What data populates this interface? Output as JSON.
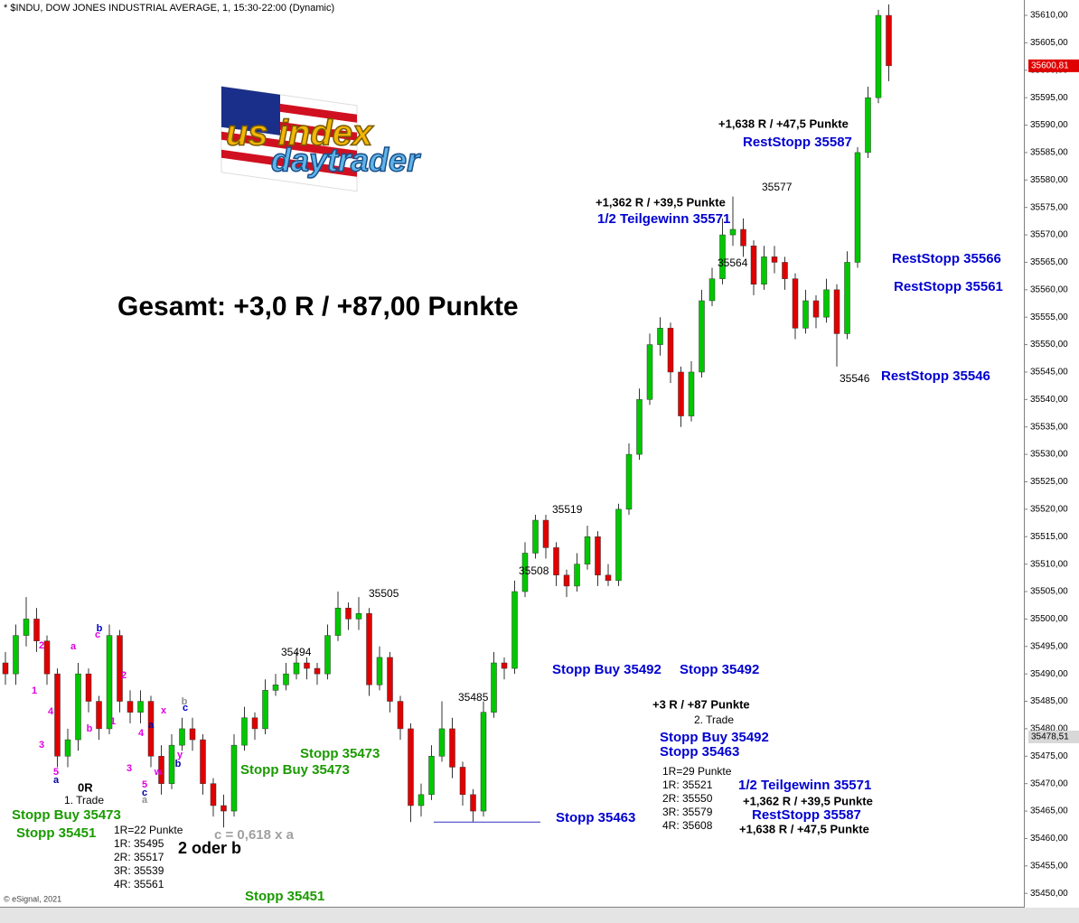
{
  "chart_data": {
    "type": "candlestick",
    "title": "* $INDU, DOW JONES INDUSTRIAL AVERAGE, 1, 15:30-22:00 (Dynamic)",
    "footer": "© eSignal, 2021",
    "logo": {
      "top": "us index",
      "bottom": "daytrader"
    },
    "up_color": "#00c800",
    "down_color": "#e00000",
    "ylim": [
      35447.4,
      35612.8
    ],
    "yticks": [
      {
        "value": 35450,
        "label": "35450,00"
      },
      {
        "value": 35455,
        "label": "35455,00"
      },
      {
        "value": 35460,
        "label": "35460,00"
      },
      {
        "value": 35465,
        "label": "35465,00"
      },
      {
        "value": 35470,
        "label": "35470,00"
      },
      {
        "value": 35475,
        "label": "35475,00"
      },
      {
        "value": 35480,
        "label": "35480,00"
      },
      {
        "value": 35485,
        "label": "35485,00"
      },
      {
        "value": 35490,
        "label": "35490,00"
      },
      {
        "value": 35495,
        "label": "35495,00"
      },
      {
        "value": 35500,
        "label": "35500,00"
      },
      {
        "value": 35505,
        "label": "35505,00"
      },
      {
        "value": 35510,
        "label": "35510,00"
      },
      {
        "value": 35515,
        "label": "35515,00"
      },
      {
        "value": 35520,
        "label": "35520,00"
      },
      {
        "value": 35525,
        "label": "35525,00"
      },
      {
        "value": 35530,
        "label": "35530,00"
      },
      {
        "value": 35535,
        "label": "35535,00"
      },
      {
        "value": 35540,
        "label": "35540,00"
      },
      {
        "value": 35545,
        "label": "35545,00"
      },
      {
        "value": 35550,
        "label": "35550,00"
      },
      {
        "value": 35555,
        "label": "35555,00"
      },
      {
        "value": 35560,
        "label": "35560,00"
      },
      {
        "value": 35565,
        "label": "35565,00"
      },
      {
        "value": 35570,
        "label": "35570,00"
      },
      {
        "value": 35575,
        "label": "35575,00"
      },
      {
        "value": 35580,
        "label": "35580,00"
      },
      {
        "value": 35585,
        "label": "35585,00"
      },
      {
        "value": 35590,
        "label": "35590,00"
      },
      {
        "value": 35595,
        "label": "35595,00"
      },
      {
        "value": 35600,
        "label": "35600,00"
      },
      {
        "value": 35605,
        "label": "35605,00"
      },
      {
        "value": 35610,
        "label": "35610,00"
      }
    ],
    "price_markers": [
      {
        "value": 35600.81,
        "label": "35600,81",
        "color": "#e00000"
      },
      {
        "value": 35478.51,
        "label": "35478,51",
        "color": "#d8d8d8"
      }
    ],
    "stop_line": 35463,
    "open": [
      35492,
      35490,
      35497,
      35500,
      35496,
      35490,
      35475,
      35478,
      35490,
      35485,
      35480,
      35497,
      35485,
      35483,
      35485,
      35475,
      35470,
      35477,
      35480,
      35478,
      35470,
      35466,
      35465,
      35477,
      35482,
      35480,
      35487,
      35488,
      35490,
      35492,
      35491,
      35490,
      35497,
      35502,
      35500,
      35501,
      35488,
      35493,
      35485,
      35480,
      35466,
      35468,
      35475,
      35480,
      35473,
      35468,
      35465,
      35483,
      35492,
      35491,
      35505,
      35512,
      35518,
      35513,
      35508,
      35506,
      35510,
      35515,
      35508,
      35507,
      35520,
      35530,
      35540,
      35550,
      35553,
      35545,
      35537,
      35545,
      35558,
      35562,
      35570,
      35571,
      35568,
      35561,
      35566,
      35565,
      35562,
      35553,
      35558,
      35555,
      35560,
      35552,
      35565,
      35585,
      35595,
      35610
    ],
    "high": [
      35494,
      35499,
      35504,
      35502,
      35497,
      35491,
      35480,
      35492,
      35491,
      35486,
      35499,
      35498,
      35487,
      35487,
      35486,
      35477,
      35479,
      35482,
      35482,
      35479,
      35471,
      35468,
      35479,
      35484,
      35483,
      35489,
      35490,
      35492,
      35494,
      35493,
      35492,
      35499,
      35505,
      35503,
      35504,
      35502,
      35495,
      35494,
      35486,
      35481,
      35470,
      35477,
      35485,
      35482,
      35474,
      35469,
      35485,
      35494,
      35493,
      35507,
      35514,
      35519,
      35519,
      35514,
      35509,
      35512,
      35517,
      35516,
      35510,
      35521,
      35532,
      35542,
      35552,
      35555,
      35554,
      35546,
      35547,
      35560,
      35564,
      35573,
      35577,
      35573,
      35569,
      35568,
      35568,
      35566,
      35563,
      35560,
      35559,
      35562,
      35561,
      35567,
      35586,
      35597,
      35611,
      35612
    ],
    "low": [
      35488,
      35488,
      35495,
      35494,
      35488,
      35473,
      35473,
      35476,
      35483,
      35478,
      35479,
      35483,
      35481,
      35481,
      35473,
      35468,
      35469,
      35476,
      35476,
      35468,
      35464,
      35462,
      35464,
      35476,
      35478,
      35479,
      35486,
      35487,
      35489,
      35489,
      35488,
      35489,
      35496,
      35498,
      35498,
      35486,
      35487,
      35483,
      35478,
      35463,
      35464,
      35467,
      35474,
      35471,
      35466,
      35463,
      35464,
      35482,
      35489,
      35490,
      35504,
      35511,
      35511,
      35506,
      35504,
      35505,
      35509,
      35506,
      35506,
      35506,
      35519,
      35529,
      35539,
      35548,
      35543,
      35535,
      35536,
      35544,
      35557,
      35561,
      35568,
      35566,
      35559,
      35560,
      35563,
      35560,
      35551,
      35552,
      35553,
      35554,
      35546,
      35551,
      35564,
      35584,
      35594,
      35598
    ],
    "close": [
      35490,
      35497,
      35500,
      35496,
      35490,
      35475,
      35478,
      35490,
      35485,
      35480,
      35497,
      35485,
      35483,
      35485,
      35475,
      35470,
      35477,
      35480,
      35478,
      35470,
      35466,
      35465,
      35477,
      35482,
      35480,
      35487,
      35488,
      35490,
      35492,
      35491,
      35490,
      35497,
      35502,
      35500,
      35501,
      35488,
      35493,
      35485,
      35480,
      35466,
      35468,
      35475,
      35480,
      35473,
      35468,
      35465,
      35483,
      35492,
      35491,
      35505,
      35512,
      35518,
      35513,
      35508,
      35506,
      35510,
      35515,
      35508,
      35507,
      35520,
      35530,
      35540,
      35550,
      35553,
      35545,
      35537,
      35545,
      35558,
      35562,
      35570,
      35571,
      35568,
      35561,
      35566,
      35565,
      35562,
      35553,
      35558,
      35555,
      35560,
      35552,
      35565,
      35585,
      35595,
      35610,
      35600.81
    ],
    "annotations": [
      {
        "text": "Gesamt: +3,0 R / +87,00 Punkte",
        "color": "#000000"
      },
      {
        "text": "+1,638 R / +47,5 Punkte",
        "color": "#000000"
      },
      {
        "text": "RestStopp 35587",
        "color": "#0000d0"
      },
      {
        "text": "35577",
        "color": "#000000"
      },
      {
        "text": "+1,362 R / +39,5 Punkte",
        "color": "#000000"
      },
      {
        "text": "1/2 Teilgewinn 35571",
        "color": "#0000d0"
      },
      {
        "text": "35564",
        "color": "#000000"
      },
      {
        "text": "RestStopp 35566",
        "color": "#0000d0"
      },
      {
        "text": "RestStopp 35561",
        "color": "#0000d0"
      },
      {
        "text": "35546",
        "color": "#000000"
      },
      {
        "text": "RestStopp 35546",
        "color": "#0000d0"
      },
      {
        "text": "35519",
        "color": "#000000"
      },
      {
        "text": "35508",
        "color": "#000000"
      },
      {
        "text": "35505",
        "color": "#000000"
      },
      {
        "text": "35494",
        "color": "#000000"
      },
      {
        "text": "35485",
        "color": "#000000"
      },
      {
        "text": "Stopp Buy 35492",
        "color": "#0000d0"
      },
      {
        "text": "Stopp 35492",
        "color": "#0000d0"
      },
      {
        "text": "+3 R / +87 Punkte",
        "color": "#000000"
      },
      {
        "text": "2. Trade",
        "color": "#000000"
      },
      {
        "text": "Stopp Buy 35492",
        "color": "#0000d0"
      },
      {
        "text": "Stopp 35463",
        "color": "#0000d0"
      },
      {
        "text": "1R=29 Punkte",
        "color": "#000000"
      },
      {
        "text": "1R: 35521",
        "color": "#000000"
      },
      {
        "text": "2R: 35550",
        "color": "#000000"
      },
      {
        "text": "3R: 35579",
        "color": "#000000"
      },
      {
        "text": "4R: 35608",
        "color": "#000000"
      },
      {
        "text": "1/2 Teilgewinn 35571",
        "color": "#0000d0"
      },
      {
        "text": "+1,362 R / +39,5 Punkte",
        "color": "#000000"
      },
      {
        "text": "RestStopp 35587",
        "color": "#0000d0"
      },
      {
        "text": "+1,638 R / +47,5 Punkte",
        "color": "#000000"
      },
      {
        "text": "Stopp 35463",
        "color": "#0000d0"
      },
      {
        "text": "Stopp 35473",
        "color": "#1a9a00"
      },
      {
        "text": "Stopp Buy 35473",
        "color": "#1a9a00"
      },
      {
        "text": "Stopp 35451",
        "color": "#1a9a00"
      },
      {
        "text": "0R",
        "color": "#000000"
      },
      {
        "text": "1. Trade",
        "color": "#000000"
      },
      {
        "text": "Stopp Buy 35473",
        "color": "#1a9a00"
      },
      {
        "text": "Stopp 35451",
        "color": "#1a9a00"
      },
      {
        "text": "1R=22 Punkte",
        "color": "#000000"
      },
      {
        "text": "1R: 35495",
        "color": "#000000"
      },
      {
        "text": "2R: 35517",
        "color": "#000000"
      },
      {
        "text": "3R: 35539",
        "color": "#000000"
      },
      {
        "text": "4R: 35561",
        "color": "#000000"
      },
      {
        "text": "c = 0,618 x a",
        "color": "#a0a0a0"
      },
      {
        "text": "2 oder b",
        "color": "#000000"
      }
    ],
    "wave_labels": [
      {
        "text": "2",
        "color": "#e000e0"
      },
      {
        "text": "1",
        "color": "#e000e0"
      },
      {
        "text": "4",
        "color": "#e000e0"
      },
      {
        "text": "3",
        "color": "#e000e0"
      },
      {
        "text": "5",
        "color": "#e000e0"
      },
      {
        "text": "a",
        "color": "#0000a0"
      },
      {
        "text": "a",
        "color": "#e000e0"
      },
      {
        "text": "b",
        "color": "#e000e0"
      },
      {
        "text": "c",
        "color": "#e000e0"
      },
      {
        "text": "b",
        "color": "#0000d0"
      },
      {
        "text": "2",
        "color": "#e000e0"
      },
      {
        "text": "1",
        "color": "#e000e0"
      },
      {
        "text": "3",
        "color": "#e000e0"
      },
      {
        "text": "4",
        "color": "#e000e0"
      },
      {
        "text": "a",
        "color": "#0000a0"
      },
      {
        "text": "x",
        "color": "#e000e0"
      },
      {
        "text": "b",
        "color": "#909090"
      },
      {
        "text": "c",
        "color": "#0000d0"
      },
      {
        "text": "y",
        "color": "#e000e0"
      },
      {
        "text": "b",
        "color": "#0000a0"
      },
      {
        "text": "w",
        "color": "#e000e0"
      },
      {
        "text": "5",
        "color": "#e000e0"
      },
      {
        "text": "c",
        "color": "#0000a0"
      },
      {
        "text": "a",
        "color": "#909090"
      }
    ]
  }
}
